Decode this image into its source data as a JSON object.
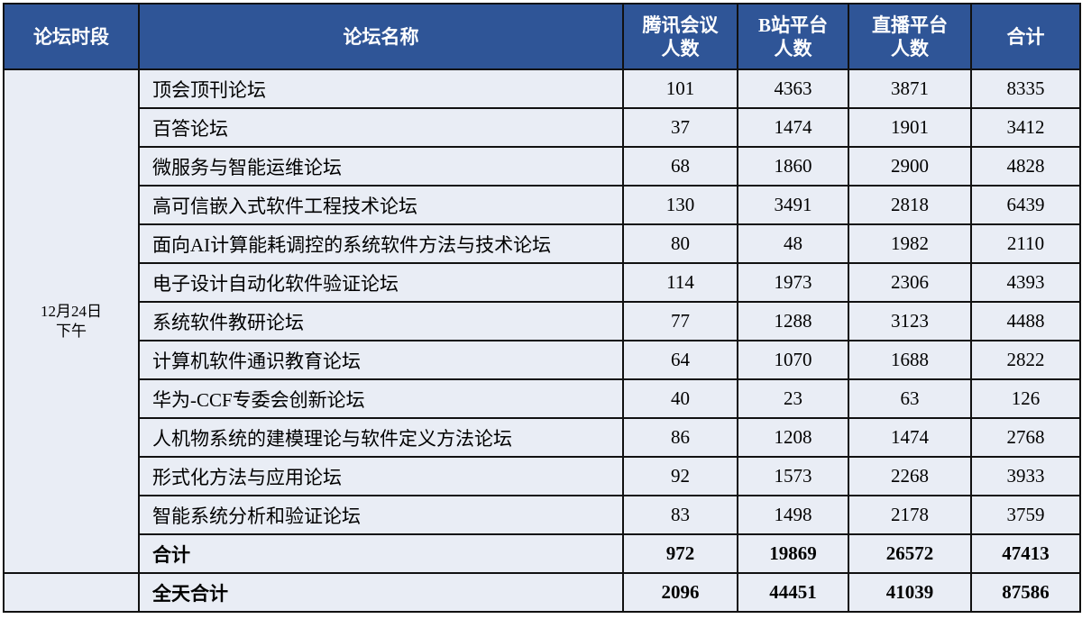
{
  "headers": {
    "period": "论坛时段",
    "name": "论坛名称",
    "tencent": [
      "腾讯会议",
      "人数"
    ],
    "bilibili": [
      "B站平台",
      "人数"
    ],
    "live": [
      "直播平台",
      "人数"
    ],
    "total": "合计"
  },
  "period": [
    "12月24日",
    "下午"
  ],
  "rows": [
    {
      "name": "顶会顶刊论坛",
      "tencent": "101",
      "bilibili": "4363",
      "live": "3871",
      "total": "8335"
    },
    {
      "name": "百答论坛",
      "tencent": "37",
      "bilibili": "1474",
      "live": "1901",
      "total": "3412"
    },
    {
      "name": "微服务与智能运维论坛",
      "tencent": "68",
      "bilibili": "1860",
      "live": "2900",
      "total": "4828"
    },
    {
      "name": "高可信嵌入式软件工程技术论坛",
      "tencent": "130",
      "bilibili": "3491",
      "live": "2818",
      "total": "6439"
    },
    {
      "name": "面向AI计算能耗调控的系统软件方法与技术论坛",
      "tencent": "80",
      "bilibili": "48",
      "live": "1982",
      "total": "2110"
    },
    {
      "name": "电子设计自动化软件验证论坛",
      "tencent": "114",
      "bilibili": "1973",
      "live": "2306",
      "total": "4393"
    },
    {
      "name": "系统软件教研论坛",
      "tencent": "77",
      "bilibili": "1288",
      "live": "3123",
      "total": "4488"
    },
    {
      "name": "计算机软件通识教育论坛",
      "tencent": "64",
      "bilibili": "1070",
      "live": "1688",
      "total": "2822"
    },
    {
      "name": "华为-CCF专委会创新论坛",
      "tencent": "40",
      "bilibili": "23",
      "live": "63",
      "total": "126"
    },
    {
      "name": "人机物系统的建模理论与软件定义方法论坛",
      "tencent": "86",
      "bilibili": "1208",
      "live": "1474",
      "total": "2768"
    },
    {
      "name": "形式化方法与应用论坛",
      "tencent": "92",
      "bilibili": "1573",
      "live": "2268",
      "total": "3933"
    },
    {
      "name": "智能系统分析和验证论坛",
      "tencent": "83",
      "bilibili": "1498",
      "live": "2178",
      "total": "3759"
    }
  ],
  "subtotal": {
    "name": "合计",
    "tencent": "972",
    "bilibili": "19869",
    "live": "26572",
    "total": "47413"
  },
  "grand_total": {
    "name": "全天合计",
    "tencent": "2096",
    "bilibili": "44451",
    "live": "41039",
    "total": "87586"
  },
  "colors": {
    "header_bg": "#2F5597",
    "cell_bg": "#E9EDF5"
  }
}
